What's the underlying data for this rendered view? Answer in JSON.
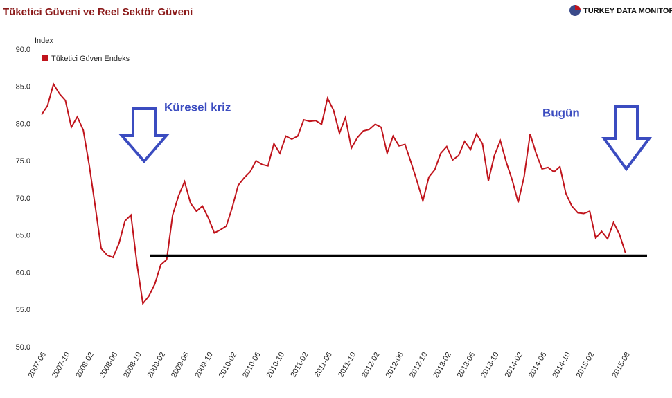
{
  "chart_data": {
    "type": "line",
    "title": "Tüketici Güveni ve Reel Sektör Güveni",
    "brand": "TURKEY DATA MONITOR",
    "y_axis_label": "Index",
    "annotations": [
      "Küresel kriz",
      "Bugün"
    ],
    "reference_line": 62.3,
    "categories": [
      "2007-06",
      null,
      null,
      null,
      "2007-10",
      null,
      null,
      null,
      "2008-02",
      null,
      null,
      null,
      "2008-06",
      null,
      null,
      null,
      "2008-10",
      null,
      null,
      null,
      "2009-02",
      null,
      null,
      null,
      "2009-06",
      null,
      null,
      null,
      "2009-10",
      null,
      null,
      null,
      "2010-02",
      null,
      null,
      null,
      "2010-06",
      null,
      null,
      null,
      "2010-10",
      null,
      null,
      null,
      "2011-02",
      null,
      null,
      null,
      "2011-06",
      null,
      null,
      null,
      "2011-10",
      null,
      null,
      null,
      "2012-02",
      null,
      null,
      null,
      "2012-06",
      null,
      null,
      null,
      "2012-10",
      null,
      null,
      null,
      "2013-02",
      null,
      null,
      null,
      "2013-06",
      null,
      null,
      null,
      "2013-10",
      null,
      null,
      null,
      "2014-02",
      null,
      null,
      null,
      "2014-06",
      null,
      null,
      null,
      "2014-10",
      null,
      null,
      null,
      "2015-02",
      null,
      null,
      null,
      null,
      null,
      "2015-08"
    ],
    "series": [
      {
        "name": "Tüketici Güven Endeks",
        "color": "#c0141c",
        "values": [
          81.3,
          82.5,
          85.4,
          84.1,
          83.2,
          79.6,
          81.0,
          79.2,
          74.5,
          69.0,
          63.3,
          62.4,
          62.1,
          64.0,
          67.0,
          67.8,
          61.3,
          55.9,
          56.9,
          58.5,
          61.1,
          61.8,
          67.8,
          70.4,
          72.3,
          69.4,
          68.3,
          69.0,
          67.4,
          65.4,
          65.8,
          66.3,
          68.8,
          71.8,
          72.8,
          73.6,
          75.1,
          74.6,
          74.4,
          77.4,
          76.1,
          78.4,
          78.0,
          78.4,
          80.6,
          80.4,
          80.5,
          80.0,
          83.5,
          81.9,
          78.8,
          80.9,
          76.8,
          78.2,
          79.1,
          79.3,
          80.0,
          79.6,
          76.1,
          78.4,
          77.1,
          77.3,
          74.9,
          72.4,
          69.7,
          72.9,
          73.9,
          76.1,
          77.0,
          75.2,
          75.8,
          77.7,
          76.6,
          78.7,
          77.4,
          72.4,
          75.8,
          77.8,
          74.9,
          72.5,
          69.5,
          73.0,
          78.7,
          76.1,
          74.0,
          74.2,
          73.6,
          74.3,
          70.7,
          69.0,
          68.1,
          68.0,
          68.3,
          64.7,
          65.6,
          64.6,
          66.8,
          65.2,
          62.7
        ]
      }
    ],
    "ylim": [
      50,
      90
    ],
    "yticks": [
      {
        "value": 50,
        "label": "50.0"
      },
      {
        "value": 55,
        "label": "55.0"
      },
      {
        "value": 60,
        "label": "60.0"
      },
      {
        "value": 65,
        "label": "65.0"
      },
      {
        "value": 70,
        "label": "70.0"
      },
      {
        "value": 75,
        "label": "75.0"
      },
      {
        "value": 80,
        "label": "80.0"
      },
      {
        "value": 85,
        "label": "85.0"
      },
      {
        "value": 90,
        "label": "90.0"
      }
    ],
    "grid": false
  }
}
